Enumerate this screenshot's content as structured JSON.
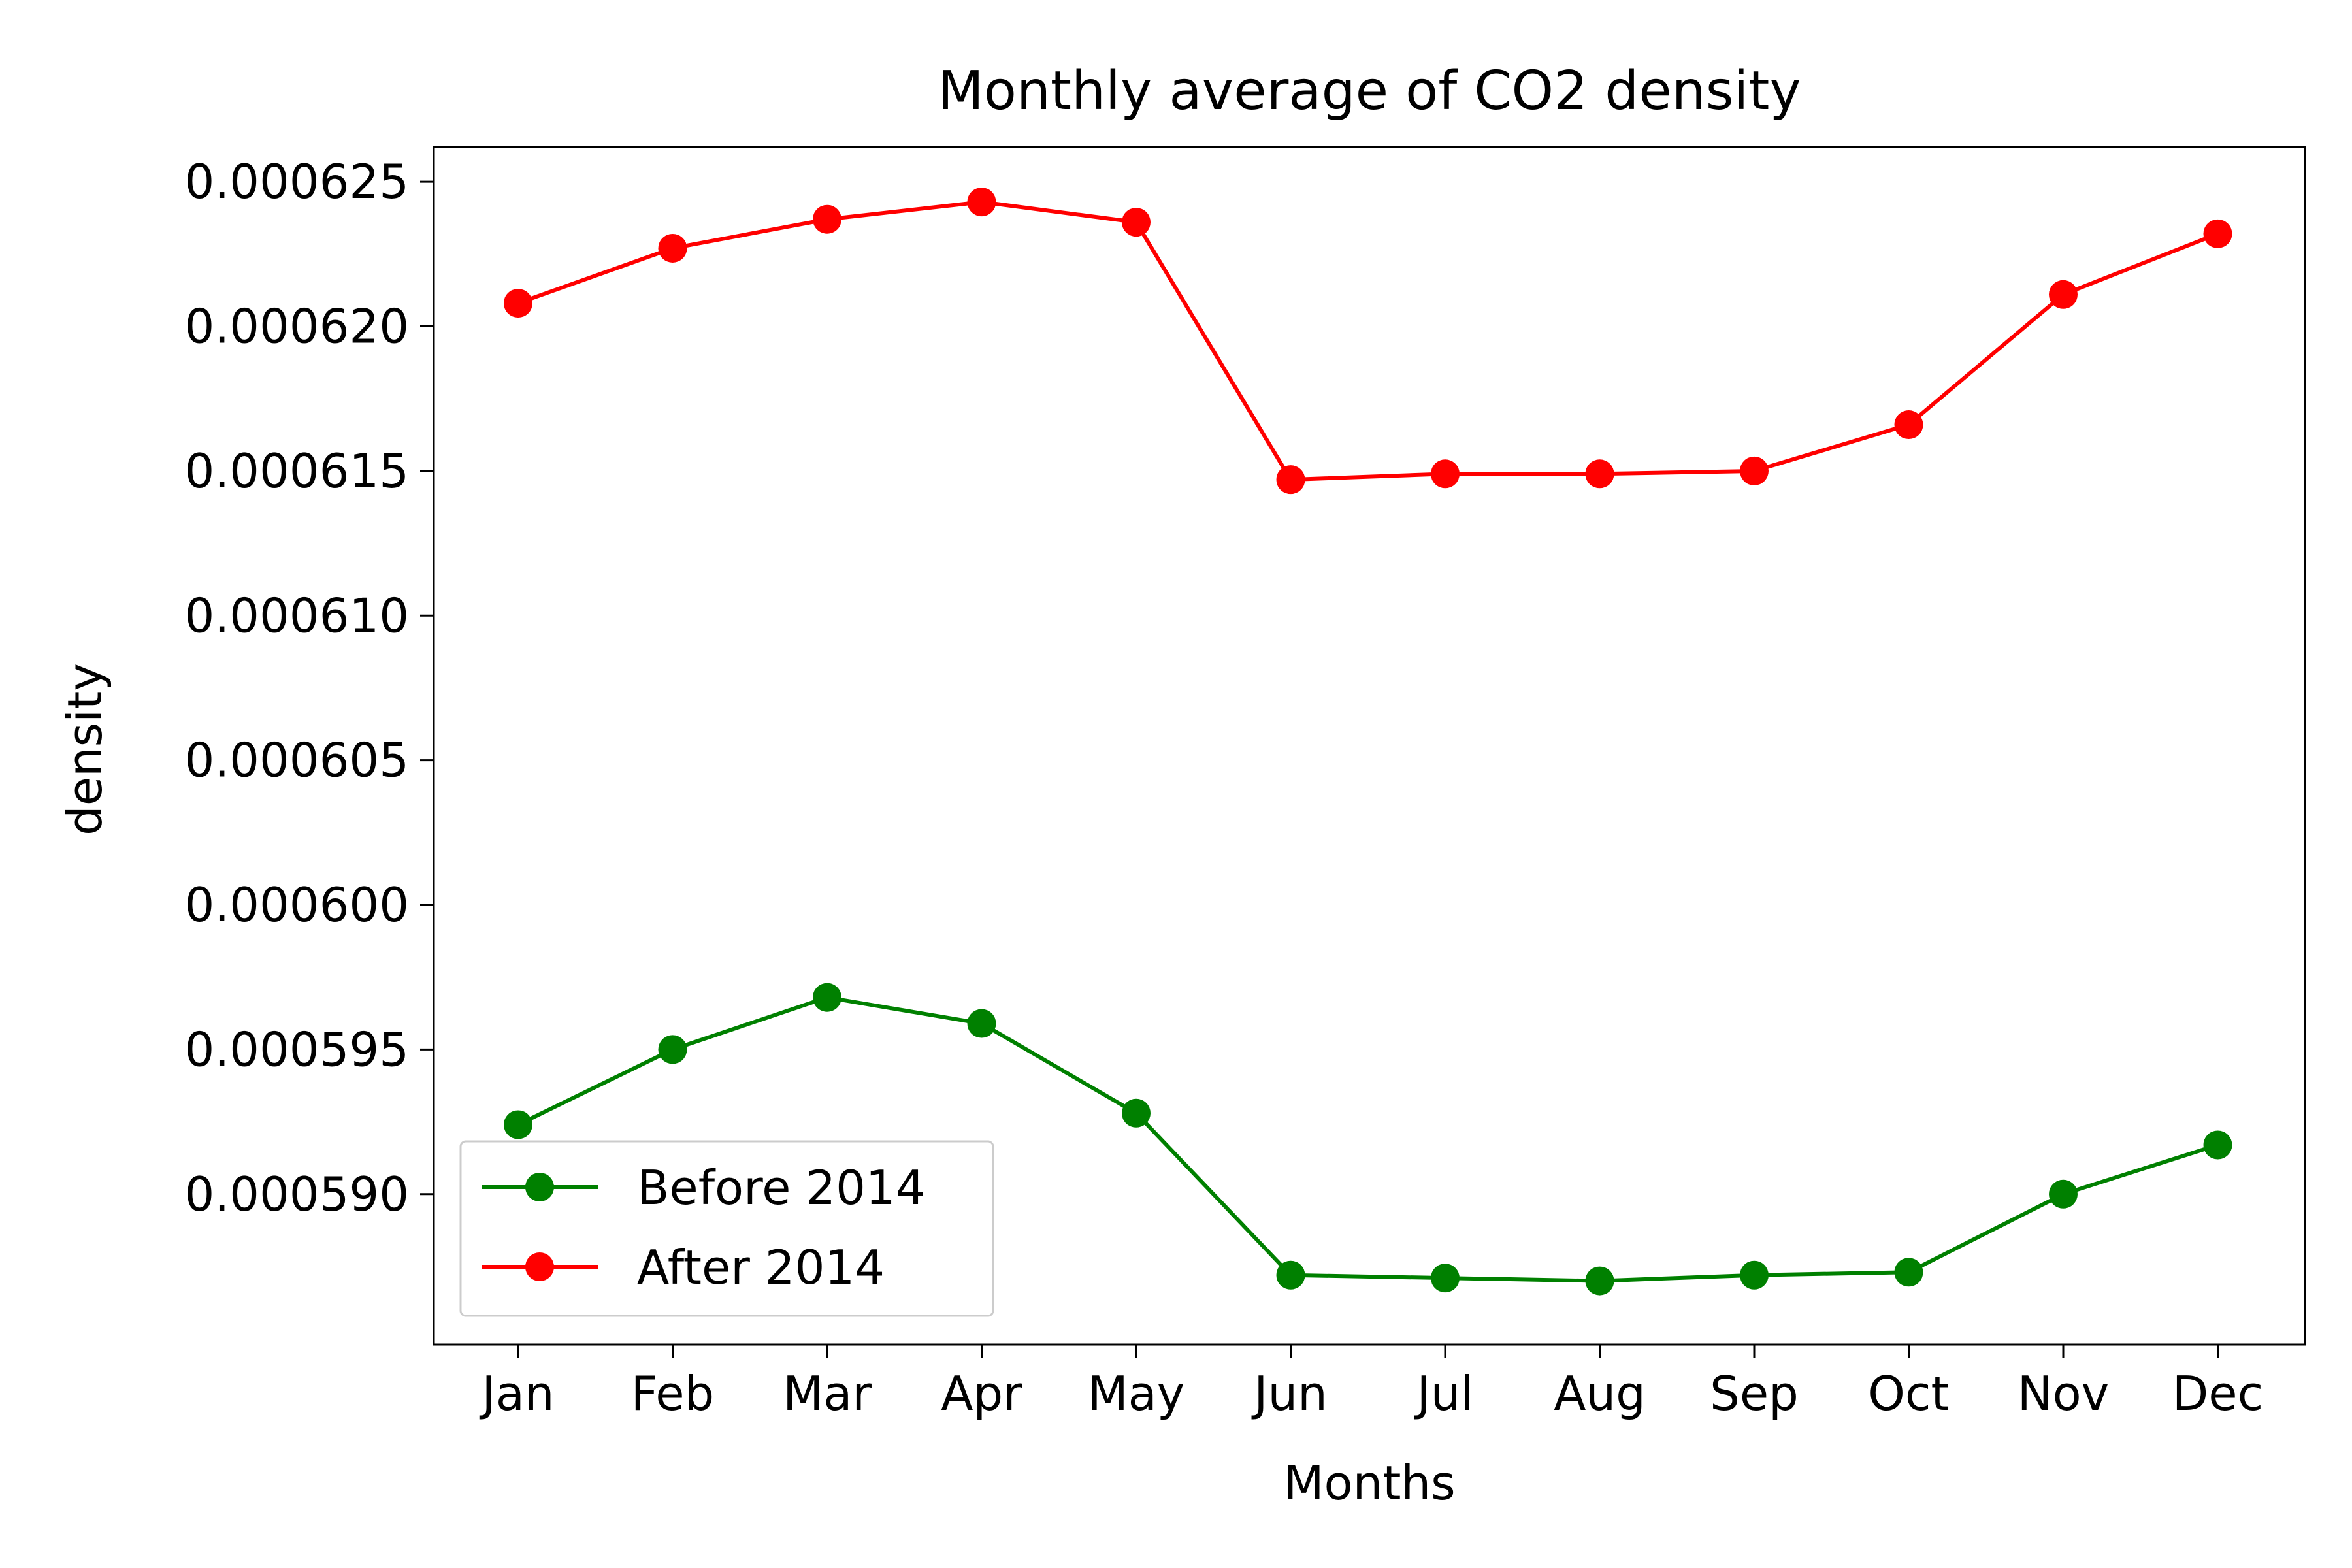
{
  "chart_data": {
    "type": "line",
    "title": "Monthly average of CO2 density",
    "xlabel": "Months",
    "ylabel": "density",
    "categories": [
      "Jan",
      "Feb",
      "Mar",
      "Apr",
      "May",
      "Jun",
      "Jul",
      "Aug",
      "Sep",
      "Oct",
      "Nov",
      "Dec"
    ],
    "ylim": [
      0.0005848,
      0.0006262
    ],
    "yticks": [
      0.00059,
      0.000595,
      0.0006,
      0.000605,
      0.00061,
      0.000615,
      0.00062,
      0.000625
    ],
    "ytick_labels": [
      "0.000590",
      "0.000595",
      "0.000600",
      "0.000605",
      "0.000610",
      "0.000615",
      "0.000620",
      "0.000625"
    ],
    "grid": false,
    "legend_position": "lower-left",
    "series": [
      {
        "name": "Before 2014",
        "color": "#008000",
        "marker": "circle",
        "values": [
          0.0005924,
          0.000595,
          0.0005968,
          0.0005959,
          0.0005928,
          0.0005872,
          0.0005871,
          0.000587,
          0.0005872,
          0.0005873,
          0.00059,
          0.0005917
        ]
      },
      {
        "name": "After 2014",
        "color": "#ff0000",
        "marker": "circle",
        "values": [
          0.0006208,
          0.0006227,
          0.0006237,
          0.0006243,
          0.0006236,
          0.0006147,
          0.0006149,
          0.0006149,
          0.000615,
          0.0006166,
          0.0006211,
          0.0006232
        ]
      }
    ]
  }
}
